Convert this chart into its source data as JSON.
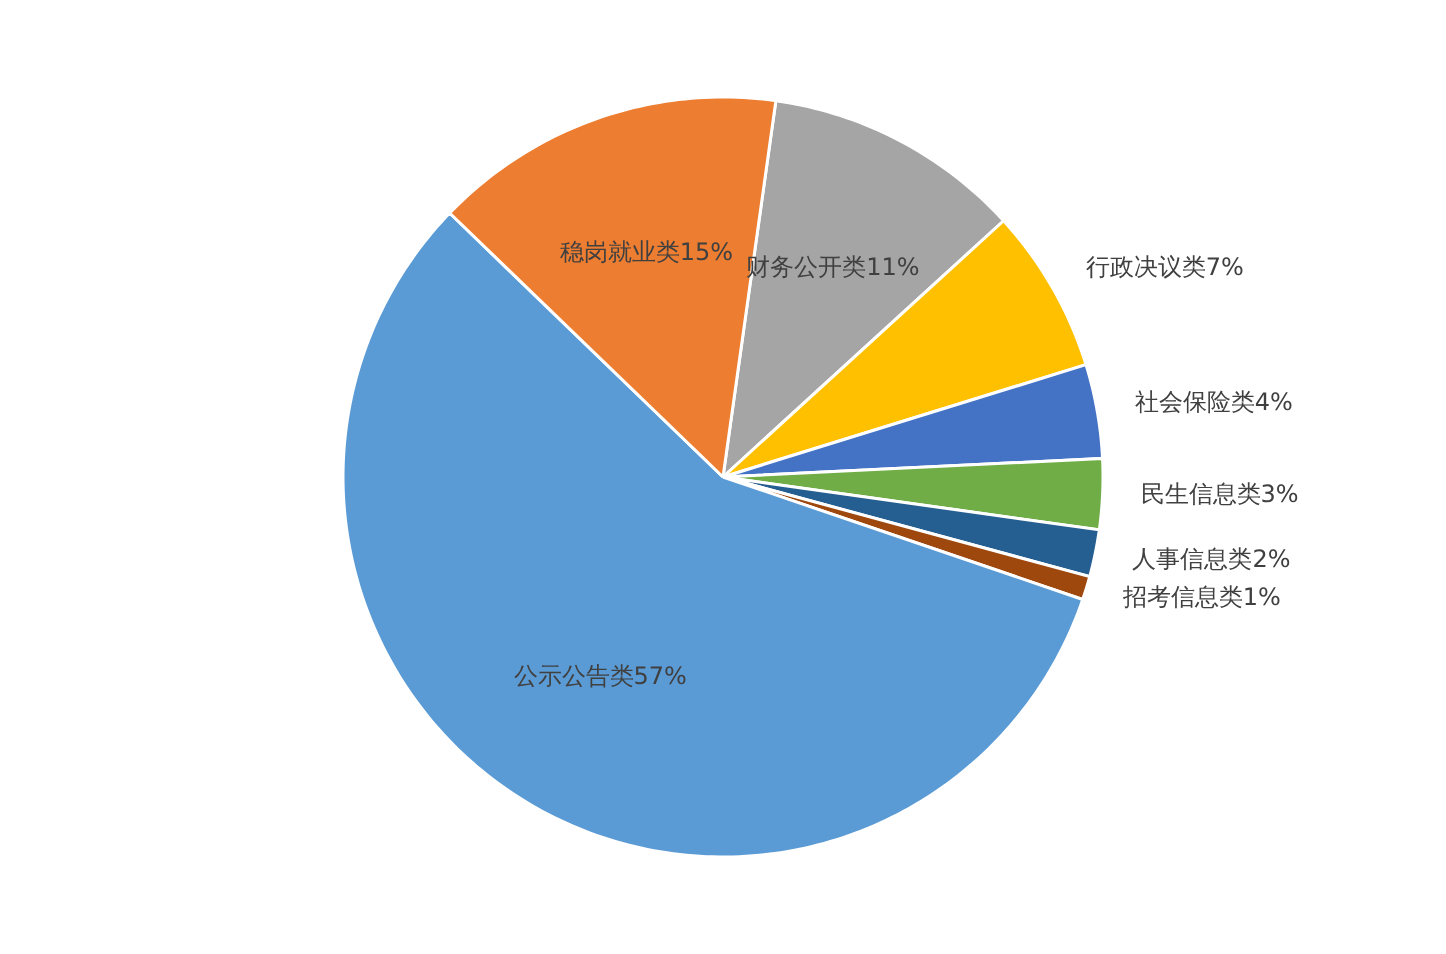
{
  "chart_data": {
    "type": "pie",
    "categories": [
      "财务公开类",
      "行政决议类",
      "社会保险类",
      "民生信息类",
      "人事信息类",
      "招考信息类",
      "公示公告类",
      "稳岗就业类"
    ],
    "values": [
      11,
      7,
      4,
      3,
      2,
      1,
      57,
      15
    ],
    "colors": [
      "#a5a5a5",
      "#ffc000",
      "#4472c4",
      "#70ad47",
      "#255e91",
      "#9e480e",
      "#5b9bd5",
      "#ed7d31"
    ],
    "value_labels": [
      "11%",
      "7%",
      "4%",
      "3%",
      "2%",
      "1%",
      "57%",
      "15%"
    ],
    "legend": false
  }
}
